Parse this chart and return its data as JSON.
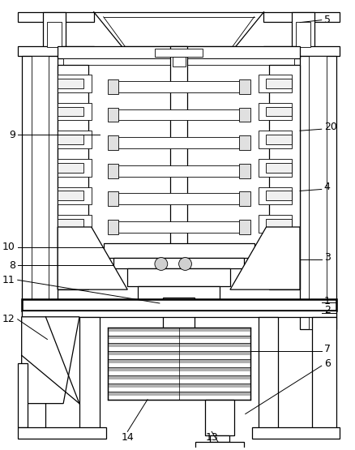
{
  "background_color": "#ffffff",
  "line_color": "#000000",
  "fig_width": 4.38,
  "fig_height": 5.55,
  "dpi": 100,
  "gray": "#c8c8c8",
  "dark_gray": "#888888"
}
